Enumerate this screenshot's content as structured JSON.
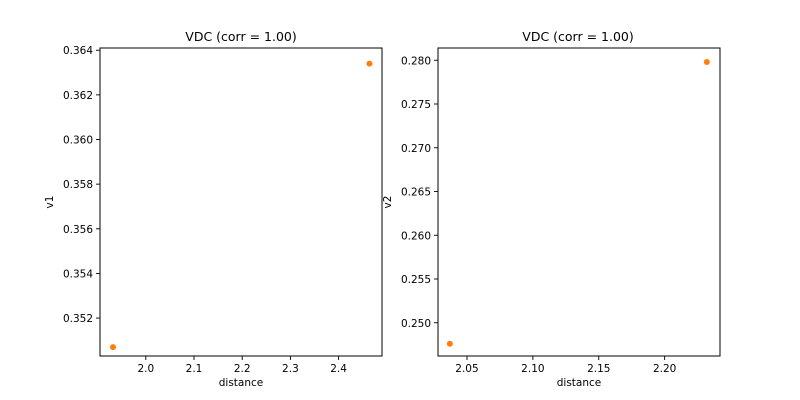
{
  "chart_data": [
    {
      "type": "scatter",
      "title": "VDC (corr = 1.00)",
      "xlabel": "distance",
      "ylabel": "v1",
      "xlim": [
        1.905,
        2.49
      ],
      "ylim": [
        0.3503,
        0.3641
      ],
      "xticks": [
        2.0,
        2.1,
        2.2,
        2.3,
        2.4
      ],
      "xtick_labels": [
        "2.0",
        "2.1",
        "2.2",
        "2.3",
        "2.4"
      ],
      "yticks": [
        0.352,
        0.354,
        0.356,
        0.358,
        0.36,
        0.362,
        0.364
      ],
      "ytick_labels": [
        "0.352",
        "0.354",
        "0.356",
        "0.358",
        "0.360",
        "0.362",
        "0.364"
      ],
      "x": [
        1.932,
        2.464
      ],
      "y": [
        0.3507,
        0.3634
      ],
      "color": "#ff7f0e",
      "grid": false
    },
    {
      "type": "scatter",
      "title": "VDC (corr = 1.00)",
      "xlabel": "distance",
      "ylabel": "v2",
      "xlim": [
        2.028,
        2.242
      ],
      "ylim": [
        0.2462,
        0.2814
      ],
      "xticks": [
        2.05,
        2.1,
        2.15,
        2.2
      ],
      "xtick_labels": [
        "2.05",
        "2.10",
        "2.15",
        "2.20"
      ],
      "yticks": [
        0.25,
        0.255,
        0.26,
        0.265,
        0.27,
        0.275,
        0.28
      ],
      "ytick_labels": [
        "0.250",
        "0.255",
        "0.260",
        "0.265",
        "0.270",
        "0.275",
        "0.280"
      ],
      "x": [
        2.037,
        2.232
      ],
      "y": [
        0.2476,
        0.2798
      ],
      "color": "#ff7f0e",
      "grid": false
    }
  ]
}
